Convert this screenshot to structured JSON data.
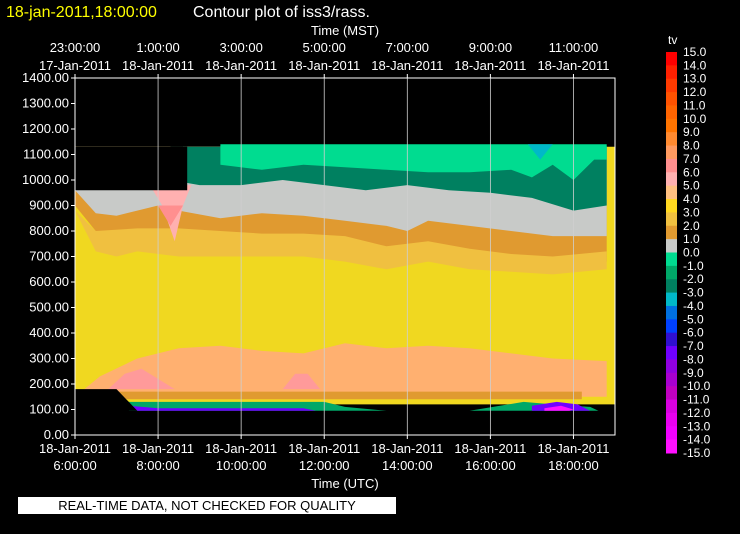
{
  "header": {
    "date_label": "18-jan-2011,18:00:00",
    "title": "Contour plot of iss3/rass."
  },
  "notice": "REAL-TIME DATA, NOT CHECKED FOR QUALITY",
  "chart_data": {
    "type": "heatmap",
    "variable": "tv",
    "top_axis_label": "Time (MST)",
    "bottom_axis_label": "Time (UTC)",
    "top_ticks": [
      {
        "time": "23:00:00",
        "date": "17-Jan-2011"
      },
      {
        "time": "1:00:00",
        "date": "18-Jan-2011"
      },
      {
        "time": "3:00:00",
        "date": "18-Jan-2011"
      },
      {
        "time": "5:00:00",
        "date": "18-Jan-2011"
      },
      {
        "time": "7:00:00",
        "date": "18-Jan-2011"
      },
      {
        "time": "9:00:00",
        "date": "18-Jan-2011"
      },
      {
        "time": "11:00:00",
        "date": "18-Jan-2011"
      }
    ],
    "bottom_ticks": [
      {
        "date": "18-Jan-2011",
        "time": "6:00:00"
      },
      {
        "date": "18-Jan-2011",
        "time": "8:00:00"
      },
      {
        "date": "18-Jan-2011",
        "time": "10:00:00"
      },
      {
        "date": "18-Jan-2011",
        "time": "12:00:00"
      },
      {
        "date": "18-Jan-2011",
        "time": "14:00:00"
      },
      {
        "date": "18-Jan-2011",
        "time": "16:00:00"
      },
      {
        "date": "18-Jan-2011",
        "time": "18:00:00"
      }
    ],
    "bottom_tick_hours": [
      6,
      8,
      10,
      12,
      14,
      16,
      18
    ],
    "xlim_utc_hours": [
      6,
      19
    ],
    "y_ticks": [
      "1400.00",
      "1300.00",
      "1200.00",
      "1100.00",
      "1000.00",
      "900.00",
      "800.00",
      "700.00",
      "600.00",
      "500.00",
      "400.00",
      "300.00",
      "200.00",
      "100.00",
      "0.00"
    ],
    "ylim": [
      0,
      1400
    ],
    "grid": true,
    "colorbar": {
      "title": "tv",
      "levels": [
        "15.0",
        "14.0",
        "13.0",
        "12.0",
        "11.0",
        "10.0",
        "9.0",
        "8.0",
        "7.0",
        "6.0",
        "5.0",
        "4.0",
        "3.0",
        "2.0",
        "1.0",
        "0.0",
        "-1.0",
        "-2.0",
        "-3.0",
        "-4.0",
        "-5.0",
        "-6.0",
        "-7.0",
        "-8.0",
        "-9.0",
        "-10.0",
        "-11.0",
        "-12.0",
        "-13.0",
        "-14.0",
        "-15.0"
      ],
      "colors": [
        "#ff0000",
        "#ff2000",
        "#ff3a00",
        "#ff5200",
        "#ff6400",
        "#ff7400",
        "#ff8a30",
        "#ff9a60",
        "#ff8f8f",
        "#ffb0b0",
        "#ffc080",
        "#ffd820",
        "#f0c040",
        "#e09a30",
        "#c8cac8",
        "#00dc90",
        "#00a868",
        "#008060",
        "#00b8c8",
        "#0070e0",
        "#0040ff",
        "#3010d0",
        "#7000ff",
        "#9000e0",
        "#a800d0",
        "#c000c0",
        "#d800e0",
        "#e800f0",
        "#f000ff",
        "#ff10ff"
      ]
    },
    "regions": [
      {
        "color": "#f0d820",
        "points": [
          [
            6.0,
            120
          ],
          [
            12,
            120
          ],
          [
            19,
            120
          ],
          [
            19,
            1130
          ],
          [
            6.0,
            1130
          ]
        ]
      },
      {
        "color": "#ffb070",
        "points": [
          [
            6.0,
            150
          ],
          [
            6.6,
            230
          ],
          [
            7.5,
            300
          ],
          [
            8.5,
            340
          ],
          [
            9.5,
            350
          ],
          [
            10.5,
            330
          ],
          [
            11.5,
            320
          ],
          [
            12.5,
            360
          ],
          [
            13.5,
            340
          ],
          [
            14.5,
            350
          ],
          [
            15.5,
            340
          ],
          [
            16.5,
            320
          ],
          [
            17.5,
            300
          ],
          [
            18.8,
            290
          ],
          [
            18.8,
            150
          ]
        ]
      },
      {
        "color": "#ff9a9a",
        "points": [
          [
            6.8,
            180
          ],
          [
            7.2,
            240
          ],
          [
            7.6,
            260
          ],
          [
            8.0,
            220
          ],
          [
            8.4,
            180
          ]
        ]
      },
      {
        "color": "#ff9a9a",
        "points": [
          [
            11.0,
            180
          ],
          [
            11.3,
            240
          ],
          [
            11.6,
            240
          ],
          [
            11.9,
            180
          ]
        ]
      },
      {
        "color": "#e09a30",
        "points": [
          [
            6.0,
            900
          ],
          [
            6.6,
            780
          ],
          [
            7.5,
            760
          ],
          [
            8.5,
            760
          ],
          [
            9.5,
            760
          ],
          [
            10.5,
            740
          ],
          [
            11.5,
            740
          ],
          [
            12.5,
            720
          ],
          [
            13.5,
            700
          ],
          [
            14.5,
            720
          ],
          [
            15.5,
            700
          ],
          [
            16.5,
            680
          ],
          [
            17.5,
            660
          ],
          [
            18.8,
            680
          ],
          [
            18.8,
            1130
          ],
          [
            6.0,
            1130
          ]
        ]
      },
      {
        "color": "#f0c040",
        "points": [
          [
            6.0,
            880
          ],
          [
            6.5,
            720
          ],
          [
            7.0,
            700
          ],
          [
            7.5,
            720
          ],
          [
            8.5,
            700
          ],
          [
            9.5,
            700
          ],
          [
            10.5,
            700
          ],
          [
            11.5,
            700
          ],
          [
            12.5,
            680
          ],
          [
            13.5,
            650
          ],
          [
            14.5,
            680
          ],
          [
            15.5,
            650
          ],
          [
            16.5,
            640
          ],
          [
            17.5,
            630
          ],
          [
            18.8,
            650
          ],
          [
            18.8,
            720
          ],
          [
            17.5,
            700
          ],
          [
            16.5,
            710
          ],
          [
            15.5,
            730
          ],
          [
            14.5,
            760
          ],
          [
            13.5,
            740
          ],
          [
            12.5,
            780
          ],
          [
            11.5,
            790
          ],
          [
            10.5,
            790
          ],
          [
            9.5,
            800
          ],
          [
            8.5,
            810
          ],
          [
            7.5,
            810
          ],
          [
            6.5,
            800
          ]
        ]
      },
      {
        "color": "#c8cac8",
        "points": [
          [
            6.0,
            960
          ],
          [
            6.5,
            870
          ],
          [
            7.0,
            860
          ],
          [
            8.0,
            900
          ],
          [
            8.5,
            880
          ],
          [
            9.5,
            850
          ],
          [
            10.5,
            870
          ],
          [
            11.5,
            860
          ],
          [
            12.5,
            840
          ],
          [
            13.5,
            820
          ],
          [
            14.0,
            800
          ],
          [
            14.5,
            840
          ],
          [
            15.5,
            820
          ],
          [
            16.5,
            800
          ],
          [
            17.5,
            780
          ],
          [
            18.8,
            780
          ],
          [
            18.8,
            1130
          ],
          [
            6.0,
            1130
          ]
        ]
      },
      {
        "color": "#008060",
        "points": [
          [
            8.3,
            1000
          ],
          [
            9.0,
            980
          ],
          [
            10.0,
            980
          ],
          [
            11.0,
            1000
          ],
          [
            12.0,
            980
          ],
          [
            13.0,
            960
          ],
          [
            14.0,
            980
          ],
          [
            15.0,
            960
          ],
          [
            16.0,
            950
          ],
          [
            17.0,
            930
          ],
          [
            18.0,
            880
          ],
          [
            18.8,
            900
          ],
          [
            18.8,
            1130
          ],
          [
            8.3,
            1130
          ]
        ]
      },
      {
        "color": "#00dc90",
        "points": [
          [
            9.5,
            1060
          ],
          [
            10.5,
            1040
          ],
          [
            11.5,
            1060
          ],
          [
            12.5,
            1050
          ],
          [
            13.5,
            1040
          ],
          [
            14.5,
            1030
          ],
          [
            15.5,
            1030
          ],
          [
            16.5,
            1040
          ],
          [
            17.0,
            1010
          ],
          [
            17.5,
            1060
          ],
          [
            18.0,
            1000
          ],
          [
            18.5,
            1080
          ],
          [
            18.8,
            1080
          ],
          [
            18.8,
            1140
          ],
          [
            9.5,
            1140
          ]
        ]
      },
      {
        "color": "#00b8c8",
        "points": [
          [
            16.9,
            1140
          ],
          [
            17.2,
            1080
          ],
          [
            17.5,
            1140
          ]
        ]
      },
      {
        "color": "#ffb0b0",
        "points": [
          [
            7.8,
            980
          ],
          [
            8.1,
            900
          ],
          [
            8.4,
            760
          ],
          [
            8.6,
            900
          ],
          [
            8.8,
            980
          ]
        ]
      },
      {
        "color": "#ff8f8f",
        "points": [
          [
            8.0,
            900
          ],
          [
            8.3,
            820
          ],
          [
            8.6,
            900
          ]
        ]
      },
      {
        "color": "#e09a30",
        "points": [
          [
            6.6,
            170
          ],
          [
            12.0,
            170
          ],
          [
            18.2,
            170
          ],
          [
            18.2,
            140
          ],
          [
            6.6,
            140
          ]
        ]
      },
      {
        "color": "#00a868",
        "points": [
          [
            7.1,
            130
          ],
          [
            12.0,
            130
          ],
          [
            12.5,
            110
          ],
          [
            13.5,
            95
          ],
          [
            14.5,
            95
          ],
          [
            15.5,
            95
          ],
          [
            16.8,
            130
          ],
          [
            17.5,
            120
          ],
          [
            18.4,
            110
          ],
          [
            18.6,
            95
          ],
          [
            7.3,
            95
          ]
        ]
      },
      {
        "color": "#7000ff",
        "points": [
          [
            7.3,
            115
          ],
          [
            8.0,
            105
          ],
          [
            11.5,
            105
          ],
          [
            11.8,
            95
          ],
          [
            7.5,
            95
          ]
        ]
      },
      {
        "color": "#7000ff",
        "points": [
          [
            17.0,
            115
          ],
          [
            17.6,
            130
          ],
          [
            18.1,
            120
          ],
          [
            18.4,
            95
          ],
          [
            17.0,
            95
          ]
        ]
      },
      {
        "color": "#ff10ff",
        "points": [
          [
            17.3,
            105
          ],
          [
            17.7,
            115
          ],
          [
            18.0,
            100
          ],
          [
            17.9,
            95
          ],
          [
            17.3,
            95
          ]
        ]
      }
    ],
    "black_masks": [
      {
        "points": [
          [
            6.0,
            960
          ],
          [
            8.7,
            960
          ],
          [
            8.7,
            1130
          ],
          [
            6.0,
            1130
          ]
        ]
      },
      {
        "points": [
          [
            6.0,
            95
          ],
          [
            6.0,
            180
          ],
          [
            7.0,
            180
          ],
          [
            7.5,
            95
          ]
        ]
      },
      {
        "points": [
          [
            8.3,
            1130
          ],
          [
            8.6,
            1130
          ],
          [
            8.4,
            1220
          ]
        ]
      }
    ]
  }
}
